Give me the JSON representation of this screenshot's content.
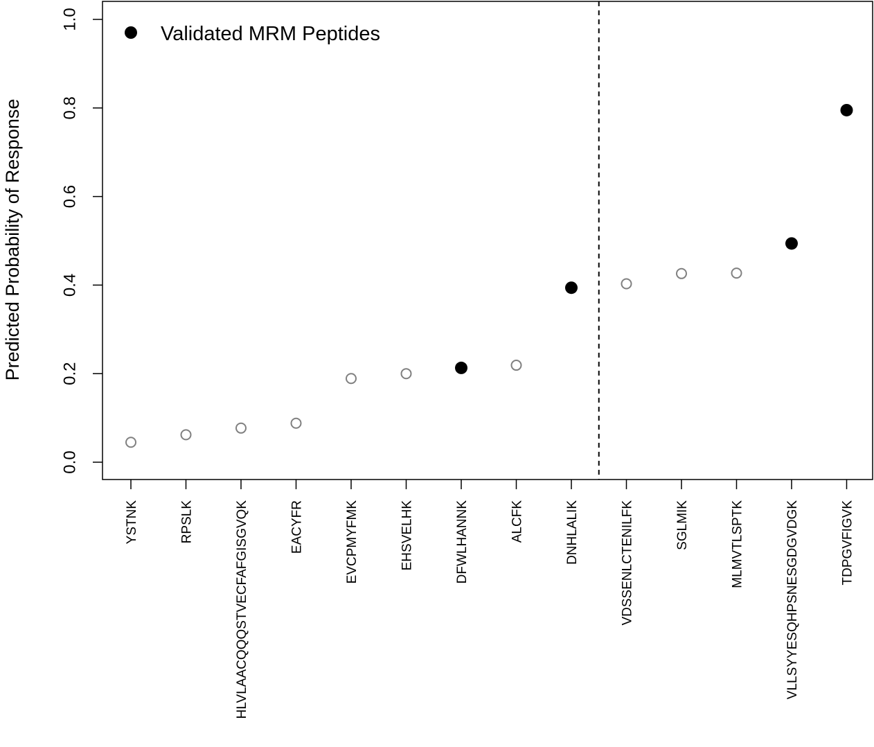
{
  "chart_data": {
    "type": "scatter",
    "ylabel": "Predicted Probability of Response",
    "xlabel": "",
    "ylim": [
      0.0,
      1.0
    ],
    "yticks": [
      "0.0",
      "0.2",
      "0.4",
      "0.6",
      "0.8",
      "1.0"
    ],
    "ytick_values": [
      0.0,
      0.2,
      0.4,
      0.6,
      0.8,
      1.0
    ],
    "categories": [
      "YSTNK",
      "RPSLK",
      "HLVLAACQQQSTVECFAFGISGVQK",
      "EACYFR",
      "EVCPMYFMK",
      "EHSVELHK",
      "DFWLHANNK",
      "ALCFK",
      "DNHLALIK",
      "VDSSENLCTENILFK",
      "SGLMIK",
      "MLMVTLSPTK",
      "VLLSYYESQHPSNESGDGVDGK",
      "TDPGVFIGVK"
    ],
    "values": [
      0.045,
      0.062,
      0.077,
      0.088,
      0.189,
      0.2,
      0.213,
      0.219,
      0.394,
      0.403,
      0.426,
      0.427,
      0.494,
      0.795
    ],
    "validated": [
      false,
      false,
      false,
      false,
      false,
      false,
      true,
      false,
      true,
      false,
      false,
      false,
      true,
      true
    ],
    "divider_after_category": "DNHLALIK",
    "legend": {
      "label": "Validated MRM Peptides",
      "position": "top-left"
    },
    "colors": {
      "validated_fill": "#000000",
      "other_stroke": "#808080",
      "axis": "#000000"
    },
    "grid": false
  }
}
